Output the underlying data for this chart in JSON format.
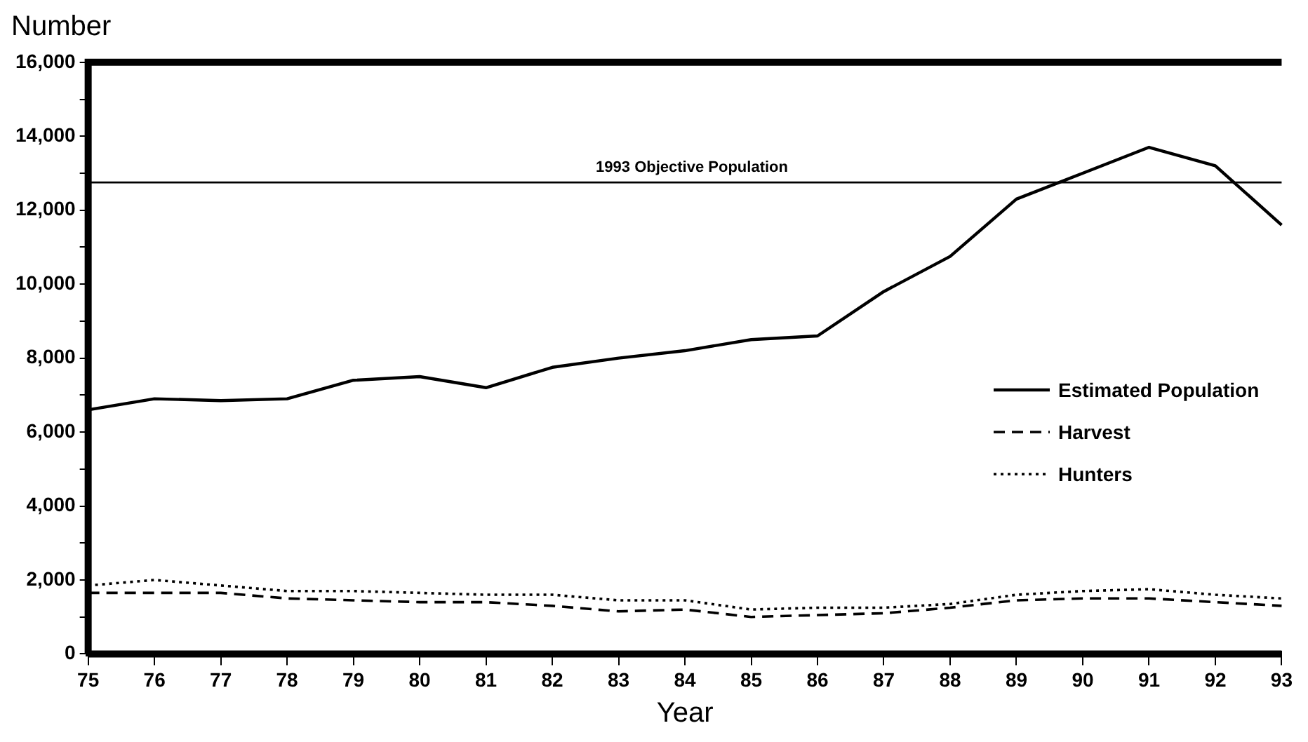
{
  "chart_data": {
    "type": "line",
    "ylabel": "Number",
    "xlabel": "Year",
    "categories": [
      "75",
      "76",
      "77",
      "78",
      "79",
      "80",
      "81",
      "82",
      "83",
      "84",
      "85",
      "86",
      "87",
      "88",
      "89",
      "90",
      "91",
      "92",
      "93"
    ],
    "series": [
      {
        "name": "Estimated Population",
        "color": "#000000",
        "line_style": "solid",
        "values": [
          6600,
          6900,
          6850,
          6900,
          7400,
          7500,
          7200,
          7750,
          8000,
          8200,
          8500,
          8600,
          9800,
          10750,
          12300,
          13000,
          13700,
          13200,
          11600
        ]
      },
      {
        "name": "Harvest",
        "color": "#000000",
        "line_style": "dashed",
        "values": [
          1650,
          1650,
          1650,
          1500,
          1450,
          1400,
          1400,
          1300,
          1150,
          1200,
          1000,
          1050,
          1100,
          1250,
          1450,
          1500,
          1500,
          1400,
          1300
        ]
      },
      {
        "name": "Hunters",
        "color": "#000000",
        "line_style": "dotted",
        "values": [
          1850,
          2000,
          1850,
          1700,
          1700,
          1650,
          1600,
          1600,
          1450,
          1450,
          1200,
          1250,
          1250,
          1350,
          1600,
          1700,
          1750,
          1600,
          1500
        ]
      }
    ],
    "ylim": [
      0,
      16000
    ],
    "yticks": [
      0,
      {
        "value": 1000,
        "label": null
      },
      "2,000",
      {
        "value": 3000,
        "label": null
      },
      {
        "value": 4000,
        "label": "4,000"
      },
      {
        "value": 5000,
        "label": null
      },
      {
        "value": 6000,
        "label": "6,000"
      },
      {
        "value": 7000,
        "label": null
      },
      {
        "value": 8000,
        "label": "8,000"
      },
      {
        "value": 9000,
        "label": null
      },
      {
        "value": 10000,
        "label": "10,000"
      },
      {
        "value": 11000,
        "label": null
      },
      {
        "value": 12000,
        "label": "12,000"
      },
      {
        "value": 13000,
        "label": null
      },
      {
        "value": 14000,
        "label": "14,000"
      },
      {
        "value": 15000,
        "label": null
      },
      {
        "value": 16000,
        "label": "16,000"
      }
    ],
    "ref_lines": [
      {
        "axis": "y",
        "value": 12750,
        "label": "1993 Objective Population",
        "color": "#000000",
        "line_style": "solid"
      }
    ],
    "grid": false,
    "legend": "right",
    "marker": "none"
  }
}
